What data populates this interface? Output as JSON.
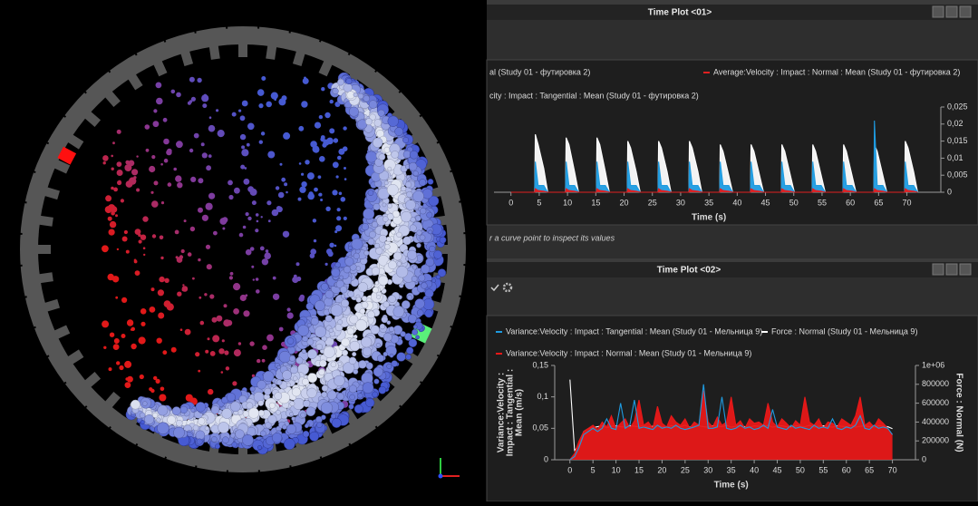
{
  "windows": [
    {
      "title": "Time Plot <01>",
      "hint": "r a curve point to inspect its values"
    },
    {
      "title": "Time Plot <02>"
    }
  ],
  "chart_data": [
    {
      "type": "area",
      "x": [
        0,
        4.2,
        4.3,
        4.8,
        5.8,
        6.5,
        9.65,
        9.75,
        10.25,
        11.25,
        11.95,
        15.1,
        15.2,
        15.7,
        16.7,
        17.4,
        20.55,
        20.65,
        21.15,
        22.15,
        22.85,
        26.0,
        26.1,
        26.6,
        27.6,
        28.3,
        31.45,
        31.55,
        32.05,
        33.05,
        33.75,
        36.9,
        37.0,
        37.5,
        38.5,
        39.2,
        42.35,
        42.45,
        42.95,
        43.95,
        44.65,
        47.8,
        47.9,
        48.4,
        49.4,
        50.1,
        53.25,
        53.35,
        53.85,
        54.85,
        55.55,
        58.7,
        58.8,
        59.3,
        60.3,
        61.0,
        64.15,
        64.25,
        64.75,
        65.75,
        66.45,
        69.6,
        69.7,
        70.2,
        71.2,
        71.9
      ],
      "series": [
        {
          "name": "al (Study 01 - футировка 2)",
          "color": "#ffffff",
          "values": [
            0,
            0,
            0.017,
            0.014,
            0.007,
            0,
            0,
            0.016,
            0.014,
            0.006,
            0,
            0,
            0.016,
            0.014,
            0.006,
            0,
            0,
            0.015,
            0.013,
            0.006,
            0,
            0,
            0.015,
            0.013,
            0.006,
            0,
            0,
            0.015,
            0.013,
            0.006,
            0,
            0,
            0.014,
            0.012,
            0.005,
            0,
            0,
            0.014,
            0.012,
            0.005,
            0,
            0,
            0.014,
            0.012,
            0.005,
            0,
            0,
            0.014,
            0.012,
            0.005,
            0,
            0,
            0.014,
            0.012,
            0.005,
            0,
            0,
            0.014,
            0.012,
            0.005,
            0,
            0,
            0.015,
            0.013,
            0.006,
            0
          ]
        },
        {
          "name": "Average:Velocity : Impact : Normal : Mean (Study 01 - футировка 2)",
          "color": "#e02020",
          "values": [
            0,
            0,
            0.001,
            0.0005,
            0.0003,
            0,
            0,
            0.001,
            0.0005,
            0.0003,
            0,
            0,
            0.001,
            0.0005,
            0.0003,
            0,
            0,
            0.001,
            0.0005,
            0.0003,
            0,
            0,
            0.001,
            0.0005,
            0.0003,
            0,
            0,
            0.001,
            0.0005,
            0.0003,
            0,
            0,
            0.001,
            0.0005,
            0.0003,
            0,
            0,
            0.001,
            0.0005,
            0.0003,
            0,
            0,
            0.001,
            0.0005,
            0.0003,
            0,
            0,
            0.001,
            0.0005,
            0.0003,
            0,
            0,
            0.001,
            0.0005,
            0.0003,
            0,
            0,
            0.001,
            0.0005,
            0.0003,
            0,
            0,
            0.001,
            0.0005,
            0.0003,
            0
          ]
        },
        {
          "name": "city : Impact : Tangential : Mean (Study 01 - футировка 2)",
          "color": "#1e9be0",
          "values": [
            0,
            0,
            0.009,
            0.002,
            0.002,
            0,
            0,
            0.009,
            0.002,
            0.002,
            0,
            0,
            0.009,
            0.002,
            0.002,
            0,
            0,
            0.009,
            0.002,
            0.002,
            0,
            0,
            0.009,
            0.002,
            0.002,
            0,
            0,
            0.009,
            0.002,
            0.002,
            0,
            0,
            0.009,
            0.002,
            0.002,
            0,
            0,
            0.009,
            0.002,
            0.002,
            0,
            0,
            0.009,
            0.002,
            0.002,
            0,
            0,
            0.009,
            0.002,
            0.002,
            0,
            0,
            0.009,
            0.002,
            0.002,
            0,
            0,
            0.021,
            0.002,
            0.002,
            0,
            0,
            0.009,
            0.002,
            0.002,
            0
          ]
        }
      ],
      "xlim": [
        -3,
        76
      ],
      "xticks": [
        0,
        5,
        10,
        15,
        20,
        25,
        30,
        35,
        40,
        45,
        50,
        55,
        60,
        65,
        70
      ],
      "xlabel": "Time (s)",
      "ylim": [
        0,
        0.025
      ],
      "y_axis": "right",
      "yticks": [
        0,
        {
          "value": 0.005,
          "label": "0,005"
        },
        {
          "value": 0.01,
          "label": "0,01"
        },
        {
          "value": 0.015,
          "label": "0,015"
        },
        {
          "value": 0.02,
          "label": "0,02"
        },
        {
          "value": 0.025,
          "label": "0,025"
        }
      ],
      "grid": false
    },
    {
      "type": "line",
      "x": [
        0,
        1,
        2,
        3,
        4,
        5,
        6,
        7,
        8,
        9,
        10,
        11,
        12,
        13,
        14,
        15,
        16,
        17,
        18,
        19,
        20,
        21,
        22,
        23,
        24,
        25,
        26,
        27,
        28,
        29,
        30,
        31,
        32,
        33,
        34,
        35,
        36,
        37,
        38,
        39,
        40,
        41,
        42,
        43,
        44,
        45,
        46,
        47,
        48,
        49,
        50,
        51,
        52,
        53,
        54,
        55,
        56,
        57,
        58,
        59,
        60,
        61,
        62,
        63,
        64,
        65,
        66,
        67,
        68,
        69,
        70
      ],
      "series": [
        {
          "name": "Variance:Velocity : Impact : Tangential : Mean (Study 01 - Мельница 9)",
          "color": "#1e9be0",
          "values": [
            0,
            0.005,
            0.02,
            0.04,
            0.045,
            0.05,
            0.045,
            0.05,
            0.065,
            0.05,
            0.048,
            0.09,
            0.05,
            0.055,
            0.095,
            0.05,
            0.052,
            0.05,
            0.048,
            0.055,
            0.05,
            0.052,
            0.05,
            0.055,
            0.05,
            0.048,
            0.05,
            0.052,
            0.055,
            0.12,
            0.05,
            0.05,
            0.052,
            0.1,
            0.05,
            0.048,
            0.05,
            0.055,
            0.05,
            0.052,
            0.048,
            0.05,
            0.055,
            0.05,
            0.08,
            0.052,
            0.05,
            0.048,
            0.055,
            0.05,
            0.052,
            0.05,
            0.048,
            0.055,
            0.05,
            0.052,
            0.05,
            0.065,
            0.05,
            0.048,
            0.052,
            0.05,
            0.055,
            0.07,
            0.05,
            0.048,
            0.055,
            0.05,
            0.052,
            0.05,
            0.04
          ]
        },
        {
          "name": "Force : Normal (Study 01 - Мельница 9)",
          "color": "#ffffff",
          "axis": "y2",
          "values": [
            850000,
            100000,
            150000,
            300000,
            330000,
            340000,
            350000,
            360000,
            340000,
            355000,
            360000,
            350000,
            345000,
            360000,
            355000,
            350000,
            365000,
            345000,
            355000,
            360000,
            350000,
            345000,
            360000,
            355000,
            350000,
            365000,
            345000,
            355000,
            360000,
            350000,
            345000,
            360000,
            355000,
            350000,
            365000,
            345000,
            355000,
            360000,
            350000,
            345000,
            360000,
            355000,
            350000,
            365000,
            345000,
            355000,
            360000,
            350000,
            345000,
            360000,
            355000,
            350000,
            365000,
            345000,
            355000,
            360000,
            350000,
            345000,
            360000,
            355000,
            350000,
            365000,
            345000,
            355000,
            360000,
            350000,
            345000,
            360000,
            355000,
            350000,
            330000
          ]
        },
        {
          "name": "Variance:Velocity : Impact : Normal : Mean (Study 01 - Мельница 9)",
          "color": "#e81818",
          "fill": true,
          "values": [
            0,
            0.01,
            0.03,
            0.045,
            0.05,
            0.055,
            0.048,
            0.06,
            0.052,
            0.07,
            0.05,
            0.058,
            0.065,
            0.05,
            0.062,
            0.095,
            0.055,
            0.06,
            0.05,
            0.085,
            0.058,
            0.052,
            0.07,
            0.06,
            0.055,
            0.065,
            0.05,
            0.06,
            0.055,
            0.11,
            0.06,
            0.052,
            0.068,
            0.055,
            0.06,
            0.1,
            0.055,
            0.062,
            0.05,
            0.065,
            0.058,
            0.06,
            0.055,
            0.09,
            0.06,
            0.052,
            0.065,
            0.058,
            0.05,
            0.062,
            0.055,
            0.1,
            0.06,
            0.055,
            0.065,
            0.05,
            0.06,
            0.058,
            0.052,
            0.065,
            0.06,
            0.055,
            0.07,
            0.1,
            0.055,
            0.06,
            0.052,
            0.065,
            0.058,
            0.05,
            0.04
          ]
        }
      ],
      "xlim": [
        -3.3,
        75
      ],
      "xticks": [
        0,
        5,
        10,
        15,
        20,
        25,
        30,
        35,
        40,
        45,
        50,
        55,
        60,
        65,
        70
      ],
      "xlabel": "Time (s)",
      "ylim": [
        0,
        0.15
      ],
      "yticks": [
        0,
        {
          "value": 0.05,
          "label": "0,05"
        },
        {
          "value": 0.1,
          "label": "0,1"
        },
        {
          "value": 0.15,
          "label": "0,15"
        }
      ],
      "ylabel": [
        "Variance:Velocity :",
        "Impact : Tangential :",
        "Mean (m/s)"
      ],
      "y2lim": [
        0,
        1000000
      ],
      "y2ticks": [
        0,
        200000,
        400000,
        600000,
        800000,
        {
          "value": 1000000,
          "label": "1e+06"
        }
      ],
      "y2label": "Force : Normal (N)",
      "grid": false
    }
  ]
}
